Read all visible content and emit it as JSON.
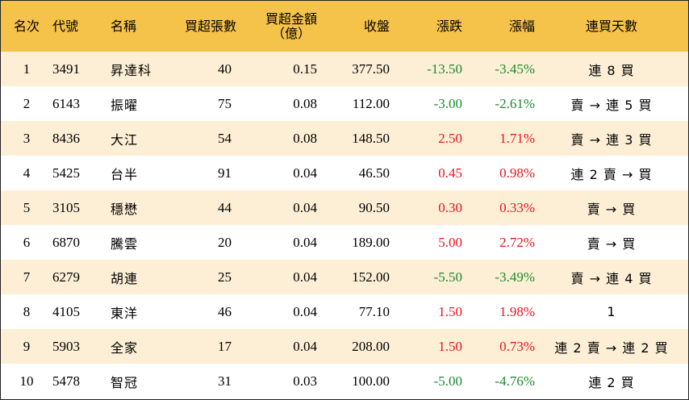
{
  "header": {
    "rank": "名次",
    "code": "代號",
    "name": "名稱",
    "net_lots": "買超張數",
    "net_amount_line1": "買超金額",
    "net_amount_line2": "（億）",
    "close": "收盤",
    "change": "漲跌",
    "change_pct": "漲幅",
    "streak": "連買天數"
  },
  "rows": [
    {
      "rank": "1",
      "code": "3491",
      "name": "昇達科",
      "net_lots": "40",
      "net_amount": "0.15",
      "close": "377.50",
      "change": "-13.50",
      "change_pct": "-3.45%",
      "direction": "down",
      "streak": "連 8 買"
    },
    {
      "rank": "2",
      "code": "6143",
      "name": "振曜",
      "net_lots": "75",
      "net_amount": "0.08",
      "close": "112.00",
      "change": "-3.00",
      "change_pct": "-2.61%",
      "direction": "down",
      "streak": "賣 → 連 5 買"
    },
    {
      "rank": "3",
      "code": "8436",
      "name": "大江",
      "net_lots": "54",
      "net_amount": "0.08",
      "close": "148.50",
      "change": "2.50",
      "change_pct": "1.71%",
      "direction": "up",
      "streak": "賣 → 連 3 買"
    },
    {
      "rank": "4",
      "code": "5425",
      "name": "台半",
      "net_lots": "91",
      "net_amount": "0.04",
      "close": "46.50",
      "change": "0.45",
      "change_pct": "0.98%",
      "direction": "up",
      "streak": "連 2 賣 → 買"
    },
    {
      "rank": "5",
      "code": "3105",
      "name": "穩懋",
      "net_lots": "44",
      "net_amount": "0.04",
      "close": "90.50",
      "change": "0.30",
      "change_pct": "0.33%",
      "direction": "up",
      "streak": "賣 → 買"
    },
    {
      "rank": "6",
      "code": "6870",
      "name": "騰雲",
      "net_lots": "20",
      "net_amount": "0.04",
      "close": "189.00",
      "change": "5.00",
      "change_pct": "2.72%",
      "direction": "up",
      "streak": "賣 → 買"
    },
    {
      "rank": "7",
      "code": "6279",
      "name": "胡連",
      "net_lots": "25",
      "net_amount": "0.04",
      "close": "152.00",
      "change": "-5.50",
      "change_pct": "-3.49%",
      "direction": "down",
      "streak": "賣 → 連 4 買"
    },
    {
      "rank": "8",
      "code": "4105",
      "name": "東洋",
      "net_lots": "46",
      "net_amount": "0.04",
      "close": "77.10",
      "change": "1.50",
      "change_pct": "1.98%",
      "direction": "up",
      "streak": "1"
    },
    {
      "rank": "9",
      "code": "5903",
      "name": "全家",
      "net_lots": "17",
      "net_amount": "0.04",
      "close": "208.00",
      "change": "1.50",
      "change_pct": "0.73%",
      "direction": "up",
      "streak": "連 2 賣 → 連 2 買"
    },
    {
      "rank": "10",
      "code": "5478",
      "name": "智冠",
      "net_lots": "31",
      "net_amount": "0.03",
      "close": "100.00",
      "change": "-5.00",
      "change_pct": "-4.76%",
      "direction": "down",
      "streak": "連 2 買"
    }
  ],
  "colors": {
    "header_bg": "#f6c34a",
    "stripe_bg": "#fdefd6",
    "up": "#e8141c",
    "down": "#1a8a2e"
  }
}
